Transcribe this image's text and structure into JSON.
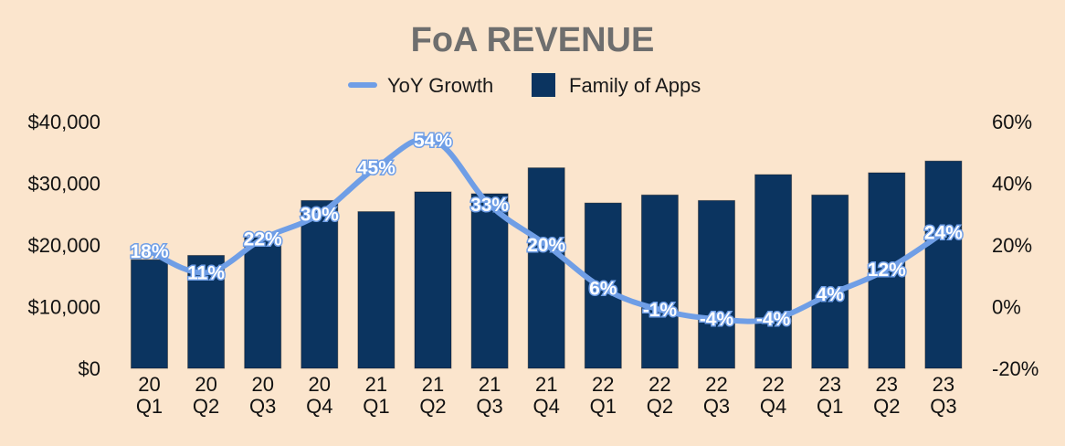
{
  "chart_data": {
    "type": "bar",
    "title": "FoA REVENUE",
    "legend": {
      "position": "top-center",
      "line_label": "YoY Growth",
      "bar_label": "Family of Apps"
    },
    "categories": [
      [
        "20",
        "Q1"
      ],
      [
        "20",
        "Q2"
      ],
      [
        "20",
        "Q3"
      ],
      [
        "20",
        "Q4"
      ],
      [
        "21",
        "Q1"
      ],
      [
        "21",
        "Q2"
      ],
      [
        "21",
        "Q3"
      ],
      [
        "21",
        "Q4"
      ],
      [
        "22",
        "Q1"
      ],
      [
        "22",
        "Q2"
      ],
      [
        "22",
        "Q3"
      ],
      [
        "22",
        "Q4"
      ],
      [
        "23",
        "Q1"
      ],
      [
        "23",
        "Q2"
      ],
      [
        "23",
        "Q3"
      ]
    ],
    "series": [
      {
        "name": "Family of Apps",
        "type": "bar",
        "axis": "left",
        "color": "#0b3460",
        "values": [
          17600,
          18300,
          21200,
          27200,
          25400,
          28600,
          28300,
          32500,
          26800,
          28100,
          27200,
          31400,
          28100,
          31700,
          33600
        ]
      },
      {
        "name": "YoY Growth",
        "type": "line",
        "axis": "right",
        "color": "#6f9ee6",
        "values": [
          18,
          11,
          22,
          30,
          45,
          54,
          33,
          20,
          6,
          -1,
          -4,
          -4,
          4,
          12,
          24
        ],
        "labels": [
          "18%",
          "11%",
          "22%",
          "30%",
          "45%",
          "54%",
          "33%",
          "20%",
          "6%",
          "-1%",
          "-4%",
          "-4%",
          "4%",
          "12%",
          "24%"
        ]
      }
    ],
    "y_left": {
      "range": [
        0,
        40000
      ],
      "ticks": [
        0,
        10000,
        20000,
        30000,
        40000
      ],
      "tick_labels": [
        "$0",
        "$10,000",
        "$20,000",
        "$30,000",
        "$40,000"
      ]
    },
    "y_right": {
      "range": [
        -20,
        60
      ],
      "ticks": [
        -20,
        0,
        20,
        40,
        60
      ],
      "tick_labels": [
        "-20%",
        "0%",
        "20%",
        "40%",
        "60%"
      ]
    },
    "grid": false
  }
}
